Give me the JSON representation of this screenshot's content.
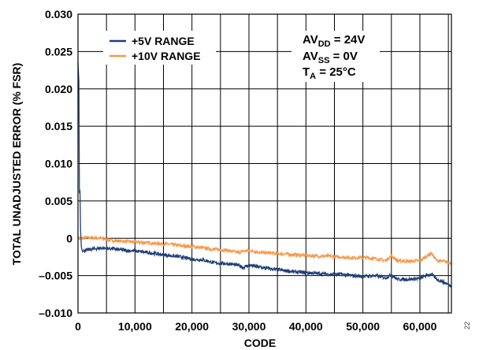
{
  "chart_data": {
    "type": "line",
    "xlabel": "CODE",
    "ylabel": "TOTAL UNADJUSTED ERROR (% FSR)",
    "xlim": [
      0,
      65535
    ],
    "ylim": [
      -0.01,
      0.03
    ],
    "x_ticks": [
      0,
      10000,
      20000,
      30000,
      40000,
      50000,
      60000
    ],
    "x_tick_labels": [
      "0",
      "10,000",
      "20,000",
      "30,000",
      "40,000",
      "50,000",
      "60,000"
    ],
    "y_ticks": [
      -0.01,
      -0.005,
      0,
      0.005,
      0.01,
      0.015,
      0.02,
      0.025,
      0.03
    ],
    "y_tick_labels": [
      "–0.010",
      "–0.005",
      "0",
      "0.005",
      "0.010",
      "0.015",
      "0.020",
      "0.025",
      "0.030"
    ],
    "grid": true,
    "legend_position": "top-left",
    "series": [
      {
        "name": "+5V RANGE",
        "color": "#1f3f7a",
        "points": [
          [
            0,
            0.0235
          ],
          [
            300,
            0.004
          ],
          [
            600,
            -0.001
          ],
          [
            1000,
            -0.0017
          ],
          [
            2000,
            -0.0015
          ],
          [
            4000,
            -0.0013
          ],
          [
            6000,
            -0.0014
          ],
          [
            8000,
            -0.0016
          ],
          [
            10000,
            -0.0017
          ],
          [
            12000,
            -0.0019
          ],
          [
            14000,
            -0.0021
          ],
          [
            16000,
            -0.0023
          ],
          [
            18000,
            -0.0025
          ],
          [
            20000,
            -0.0028
          ],
          [
            22000,
            -0.0029
          ],
          [
            24000,
            -0.0033
          ],
          [
            26000,
            -0.0034
          ],
          [
            28000,
            -0.0036
          ],
          [
            29000,
            -0.0039
          ],
          [
            30000,
            -0.0036
          ],
          [
            32000,
            -0.0039
          ],
          [
            34000,
            -0.0041
          ],
          [
            36000,
            -0.0043
          ],
          [
            38000,
            -0.0045
          ],
          [
            40000,
            -0.0046
          ],
          [
            42000,
            -0.0047
          ],
          [
            44000,
            -0.0048
          ],
          [
            46000,
            -0.0048
          ],
          [
            48000,
            -0.005
          ],
          [
            50000,
            -0.0051
          ],
          [
            52000,
            -0.005
          ],
          [
            54000,
            -0.0053
          ],
          [
            55000,
            -0.0049
          ],
          [
            56000,
            -0.0055
          ],
          [
            58000,
            -0.0055
          ],
          [
            60000,
            -0.0054
          ],
          [
            61000,
            -0.005
          ],
          [
            62000,
            -0.0048
          ],
          [
            63000,
            -0.0055
          ],
          [
            64000,
            -0.0058
          ],
          [
            65535,
            -0.0064
          ]
        ]
      },
      {
        "name": "+10V RANGE",
        "color": "#f7984a",
        "points": [
          [
            0,
            0.0
          ],
          [
            1000,
            0.0
          ],
          [
            2000,
            0.0001
          ],
          [
            4000,
            0.0
          ],
          [
            6000,
            -0.0003
          ],
          [
            8000,
            -0.0004
          ],
          [
            10000,
            -0.0005
          ],
          [
            12000,
            -0.0006
          ],
          [
            14000,
            -0.0007
          ],
          [
            16000,
            -0.0008
          ],
          [
            18000,
            -0.001
          ],
          [
            20000,
            -0.0011
          ],
          [
            22000,
            -0.0013
          ],
          [
            24000,
            -0.0015
          ],
          [
            26000,
            -0.0016
          ],
          [
            28000,
            -0.0019
          ],
          [
            30000,
            -0.0016
          ],
          [
            32000,
            -0.0019
          ],
          [
            34000,
            -0.002
          ],
          [
            36000,
            -0.0021
          ],
          [
            38000,
            -0.0022
          ],
          [
            40000,
            -0.0023
          ],
          [
            42000,
            -0.0024
          ],
          [
            44000,
            -0.0024
          ],
          [
            46000,
            -0.0025
          ],
          [
            48000,
            -0.0026
          ],
          [
            50000,
            -0.0026
          ],
          [
            52000,
            -0.0027
          ],
          [
            54000,
            -0.003
          ],
          [
            55000,
            -0.0023
          ],
          [
            56000,
            -0.003
          ],
          [
            58000,
            -0.0031
          ],
          [
            60000,
            -0.003
          ],
          [
            61000,
            -0.0025
          ],
          [
            62000,
            -0.002
          ],
          [
            63000,
            -0.003
          ],
          [
            64000,
            -0.0031
          ],
          [
            65535,
            -0.0033
          ]
        ]
      }
    ],
    "annotations": {
      "line1_main": "AV",
      "line1_sub": "DD",
      "line1_rest": " = 24V",
      "line2_main": "AV",
      "line2_sub": "SS",
      "line2_rest": " = 0V",
      "line3_main": "T",
      "line3_sub": "A",
      "line3_rest": " = 25°C"
    },
    "figure_id": "22"
  }
}
